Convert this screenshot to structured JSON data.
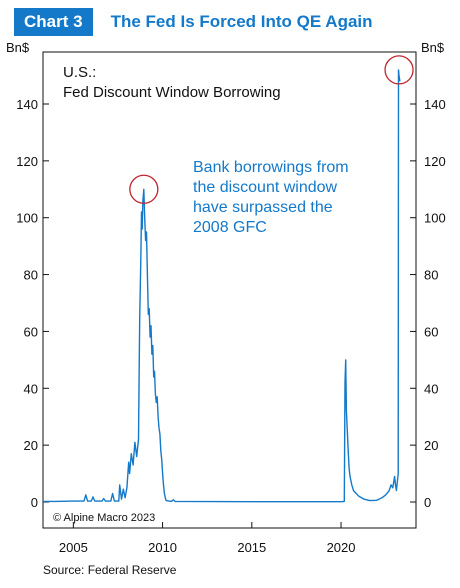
{
  "header": {
    "badge": "Chart 3",
    "title": "The Fed Is Forced Into QE Again"
  },
  "colors": {
    "accent": "#1479c9",
    "series": "#1479c9",
    "circle": "#c0262d"
  },
  "chart_data": {
    "type": "line",
    "title_lines": [
      "U.S.:",
      "Fed Discount Window Borrowing"
    ],
    "left_unit": "Bn$",
    "right_unit": "Bn$",
    "ylim": [
      0,
      155
    ],
    "xlim": [
      2003.3,
      2024.2
    ],
    "y_ticks": [
      0,
      20,
      40,
      60,
      80,
      100,
      120,
      140
    ],
    "x_ticks": [
      2005,
      2010,
      2015,
      2020
    ],
    "annotation": [
      "Bank borrowings from",
      "the discount window",
      "have surpassed the",
      "2008 GFC"
    ],
    "copyright": "© Alpine Macro 2023",
    "highlights": [
      {
        "x": 2008.95,
        "y": 110
      },
      {
        "x": 2023.25,
        "y": 152
      }
    ],
    "series": [
      {
        "points": [
          [
            2003.3,
            0.2
          ],
          [
            2004.0,
            0.2
          ],
          [
            2005.0,
            0.3
          ],
          [
            2005.6,
            0.3
          ],
          [
            2005.7,
            2.5
          ],
          [
            2005.8,
            0.3
          ],
          [
            2006.0,
            0.3
          ],
          [
            2006.1,
            1.8
          ],
          [
            2006.2,
            0.3
          ],
          [
            2006.6,
            0.3
          ],
          [
            2006.7,
            1.2
          ],
          [
            2006.8,
            0.3
          ],
          [
            2007.1,
            0.3
          ],
          [
            2007.2,
            3.0
          ],
          [
            2007.3,
            0.3
          ],
          [
            2007.55,
            0.3
          ],
          [
            2007.6,
            6.0
          ],
          [
            2007.7,
            1.0
          ],
          [
            2007.8,
            4.5
          ],
          [
            2007.9,
            1.5
          ],
          [
            2008.0,
            5.0
          ],
          [
            2008.1,
            14.0
          ],
          [
            2008.15,
            10.0
          ],
          [
            2008.25,
            17.0
          ],
          [
            2008.35,
            13.0
          ],
          [
            2008.45,
            21.0
          ],
          [
            2008.55,
            16.0
          ],
          [
            2008.65,
            22.0
          ],
          [
            2008.72,
            65.0
          ],
          [
            2008.78,
            85.0
          ],
          [
            2008.82,
            102.0
          ],
          [
            2008.86,
            96.0
          ],
          [
            2008.9,
            106.0
          ],
          [
            2008.95,
            110.0
          ],
          [
            2009.0,
            100.0
          ],
          [
            2009.05,
            92.0
          ],
          [
            2009.1,
            95.0
          ],
          [
            2009.15,
            80.0
          ],
          [
            2009.2,
            66.0
          ],
          [
            2009.25,
            68.0
          ],
          [
            2009.3,
            58.0
          ],
          [
            2009.35,
            62.0
          ],
          [
            2009.4,
            52.0
          ],
          [
            2009.45,
            55.0
          ],
          [
            2009.5,
            44.0
          ],
          [
            2009.55,
            46.0
          ],
          [
            2009.6,
            38.0
          ],
          [
            2009.65,
            35.0
          ],
          [
            2009.7,
            37.0
          ],
          [
            2009.75,
            30.0
          ],
          [
            2009.8,
            26.0
          ],
          [
            2009.85,
            24.0
          ],
          [
            2009.9,
            18.0
          ],
          [
            2009.95,
            15.0
          ],
          [
            2010.0,
            10.0
          ],
          [
            2010.05,
            6.0
          ],
          [
            2010.1,
            3.0
          ],
          [
            2010.15,
            1.5
          ],
          [
            2010.2,
            0.5
          ],
          [
            2010.5,
            0.2
          ],
          [
            2010.6,
            0.8
          ],
          [
            2010.7,
            0.2
          ],
          [
            2015.0,
            0.1
          ],
          [
            2020.0,
            0.1
          ],
          [
            2020.18,
            0.2
          ],
          [
            2020.22,
            42.0
          ],
          [
            2020.26,
            50.0
          ],
          [
            2020.3,
            32.0
          ],
          [
            2020.35,
            25.0
          ],
          [
            2020.4,
            18.0
          ],
          [
            2020.45,
            12.0
          ],
          [
            2020.5,
            9.0
          ],
          [
            2020.6,
            6.0
          ],
          [
            2020.7,
            4.0
          ],
          [
            2020.85,
            3.0
          ],
          [
            2021.0,
            2.0
          ],
          [
            2021.3,
            1.0
          ],
          [
            2021.6,
            0.5
          ],
          [
            2022.0,
            0.6
          ],
          [
            2022.3,
            1.5
          ],
          [
            2022.5,
            2.5
          ],
          [
            2022.7,
            4.0
          ],
          [
            2022.8,
            6.0
          ],
          [
            2022.9,
            5.0
          ],
          [
            2023.0,
            9.0
          ],
          [
            2023.05,
            6.0
          ],
          [
            2023.1,
            4.0
          ],
          [
            2023.15,
            7.0
          ],
          [
            2023.2,
            10.0
          ],
          [
            2023.22,
            152.0
          ],
          [
            2023.25,
            150.0
          ],
          [
            2023.3,
            148.0
          ]
        ]
      }
    ]
  },
  "footer": {
    "source": "Source: Federal Reserve"
  }
}
